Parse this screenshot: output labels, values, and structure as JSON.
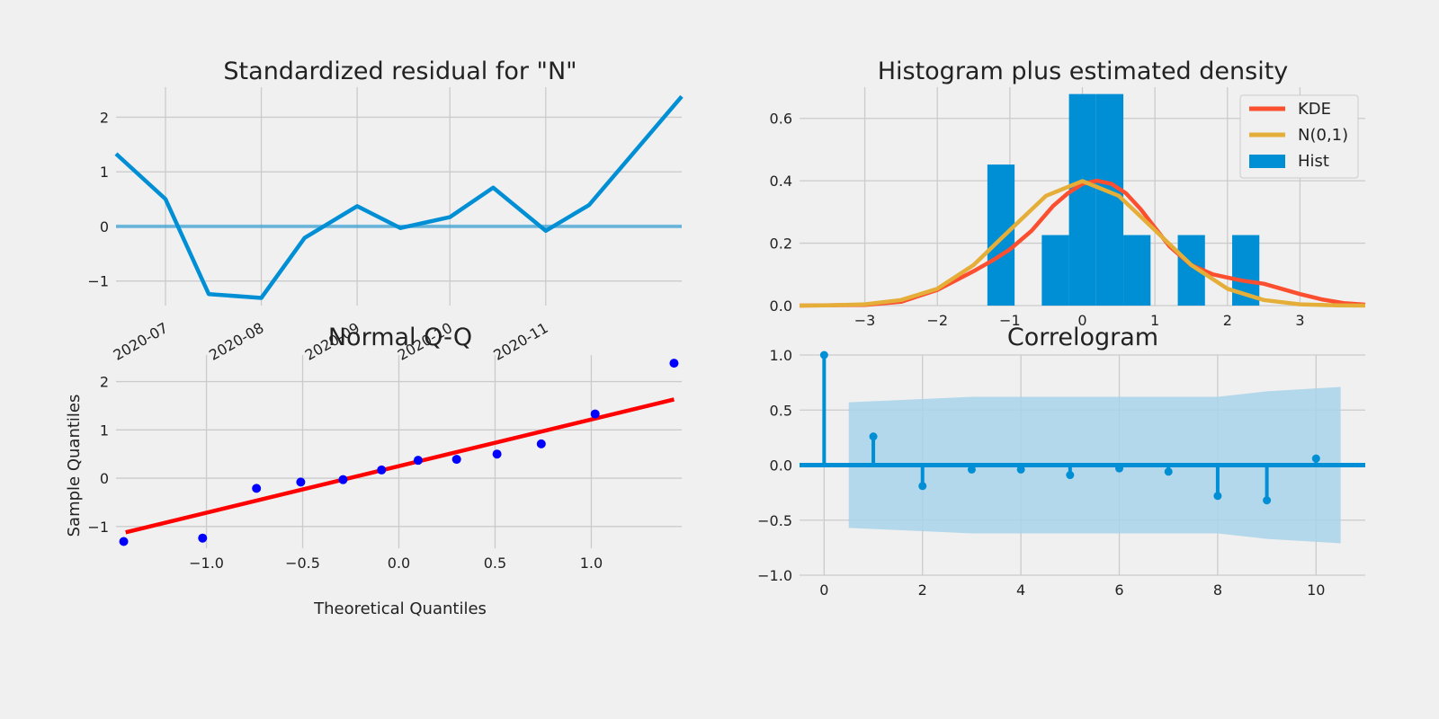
{
  "style": {
    "background": "#f0f0f0",
    "grid": "#cbcbcb",
    "blue": "#008fd5",
    "red": "#fc4f30",
    "orange": "#e5ae38",
    "qq_points": "#0000ff",
    "qq_line": "#ff0000",
    "ci_fill": "#a9d3ea"
  },
  "chart_data": [
    {
      "type": "line",
      "title": "Standardized residual for \"N\"",
      "xlabel": "",
      "ylabel": "",
      "x_start": "2020-06-15",
      "x_end": "2020-12-15",
      "x": [
        "2020-06-15",
        "2020-07-01",
        "2020-07-15",
        "2020-08-01",
        "2020-08-15",
        "2020-09-01",
        "2020-09-15",
        "2020-10-01",
        "2020-10-15",
        "2020-11-01",
        "2020-11-15",
        "2020-12-15"
      ],
      "y": [
        1.33,
        0.5,
        -1.24,
        -1.31,
        -0.21,
        0.37,
        -0.03,
        0.17,
        0.71,
        -0.08,
        0.39,
        2.38
      ],
      "hline": 0,
      "ylim": [
        -1.45,
        2.55
      ],
      "yticks": [
        -1,
        0,
        1,
        2
      ],
      "xticks": [
        "2020-07-01",
        "2020-08-01",
        "2020-09-01",
        "2020-10-01",
        "2020-11-01"
      ],
      "xtick_labels": [
        "2020-07",
        "2020-08",
        "2020-09",
        "2020-10",
        "2020-11"
      ],
      "grid": true
    },
    {
      "type": "bar",
      "title": "Histogram plus estimated density",
      "bin_edges": [
        -1.31,
        -0.935,
        -0.56,
        -0.185,
        0.19,
        0.565,
        0.94,
        1.315,
        1.69,
        2.065,
        2.44
      ],
      "hist_values": [
        0.452,
        0,
        0.226,
        0.678,
        0.678,
        0.226,
        0,
        0.226,
        0,
        0.226
      ],
      "series": [
        {
          "name": "KDE",
          "x": [
            -3.9,
            -3.0,
            -2.5,
            -2.0,
            -1.5,
            -1.2,
            -1.0,
            -0.7,
            -0.4,
            -0.2,
            0,
            0.2,
            0.4,
            0.6,
            0.8,
            1.0,
            1.2,
            1.5,
            1.8,
            2.0,
            2.2,
            2.5,
            2.8,
            3.0,
            3.3,
            3.6,
            3.9
          ],
          "y": [
            0.0,
            0.002,
            0.012,
            0.05,
            0.11,
            0.15,
            0.18,
            0.24,
            0.32,
            0.36,
            0.39,
            0.4,
            0.39,
            0.36,
            0.31,
            0.25,
            0.19,
            0.13,
            0.1,
            0.09,
            0.08,
            0.07,
            0.05,
            0.037,
            0.02,
            0.008,
            0.003
          ]
        },
        {
          "name": "N(0,1)",
          "x": [
            -3.9,
            -3.5,
            -3.0,
            -2.5,
            -2.0,
            -1.5,
            -1.0,
            -0.5,
            0,
            0.5,
            1.0,
            1.5,
            2.0,
            2.5,
            3.0,
            3.5,
            3.9
          ],
          "y": [
            0.0,
            0.001,
            0.004,
            0.018,
            0.054,
            0.13,
            0.242,
            0.352,
            0.399,
            0.352,
            0.242,
            0.13,
            0.054,
            0.018,
            0.004,
            0.001,
            0.0
          ]
        }
      ],
      "legend": [
        "KDE",
        "N(0,1)",
        "Hist"
      ],
      "legend_loc": "upper right",
      "xlim": [
        -3.9,
        3.9
      ],
      "ylim": [
        0,
        0.7
      ],
      "xticks": [
        -3,
        -2,
        -1,
        0,
        1,
        2,
        3
      ],
      "yticks": [
        0.0,
        0.2,
        0.4,
        0.6
      ],
      "grid": true
    },
    {
      "type": "scatter",
      "title": "Normal Q-Q",
      "xlabel": "Theoretical Quantiles",
      "ylabel": "Sample Quantiles",
      "x": [
        -1.43,
        -1.02,
        -0.74,
        -0.51,
        -0.29,
        -0.09,
        0.1,
        0.3,
        0.51,
        0.74,
        1.02,
        1.43
      ],
      "y": [
        -1.31,
        -1.24,
        -0.21,
        -0.08,
        -0.03,
        0.17,
        0.37,
        0.39,
        0.5,
        0.71,
        1.33,
        2.38
      ],
      "fit_line": [
        [
          -1.42,
          -1.12
        ],
        [
          1.43,
          1.63
        ]
      ],
      "xlim": [
        -1.47,
        1.47
      ],
      "ylim": [
        -1.45,
        2.55
      ],
      "xticks": [
        -1.0,
        -0.5,
        0.0,
        0.5,
        1.0
      ],
      "yticks": [
        -1,
        0,
        1,
        2
      ],
      "grid": true
    },
    {
      "type": "bar",
      "title": "Correlogram",
      "lags": [
        0,
        1,
        2,
        3,
        4,
        5,
        6,
        7,
        8,
        9,
        10
      ],
      "values": [
        1.0,
        0.26,
        -0.19,
        -0.04,
        -0.04,
        -0.09,
        -0.03,
        -0.06,
        -0.28,
        -0.32,
        0.06
      ],
      "confint_upper": [
        0.57,
        0.6,
        0.62,
        0.62,
        0.62,
        0.62,
        0.62,
        0.62,
        0.67,
        0.71
      ],
      "confint_lags": [
        0.5,
        2,
        3,
        4,
        5,
        6,
        7,
        8,
        9,
        10.5
      ],
      "xlim": [
        -0.5,
        11
      ],
      "ylim": [
        -1.0,
        1.0
      ],
      "xticks": [
        0,
        2,
        4,
        6,
        8,
        10
      ],
      "yticks": [
        -1.0,
        -0.5,
        0.0,
        0.5,
        1.0
      ],
      "grid": true
    }
  ]
}
